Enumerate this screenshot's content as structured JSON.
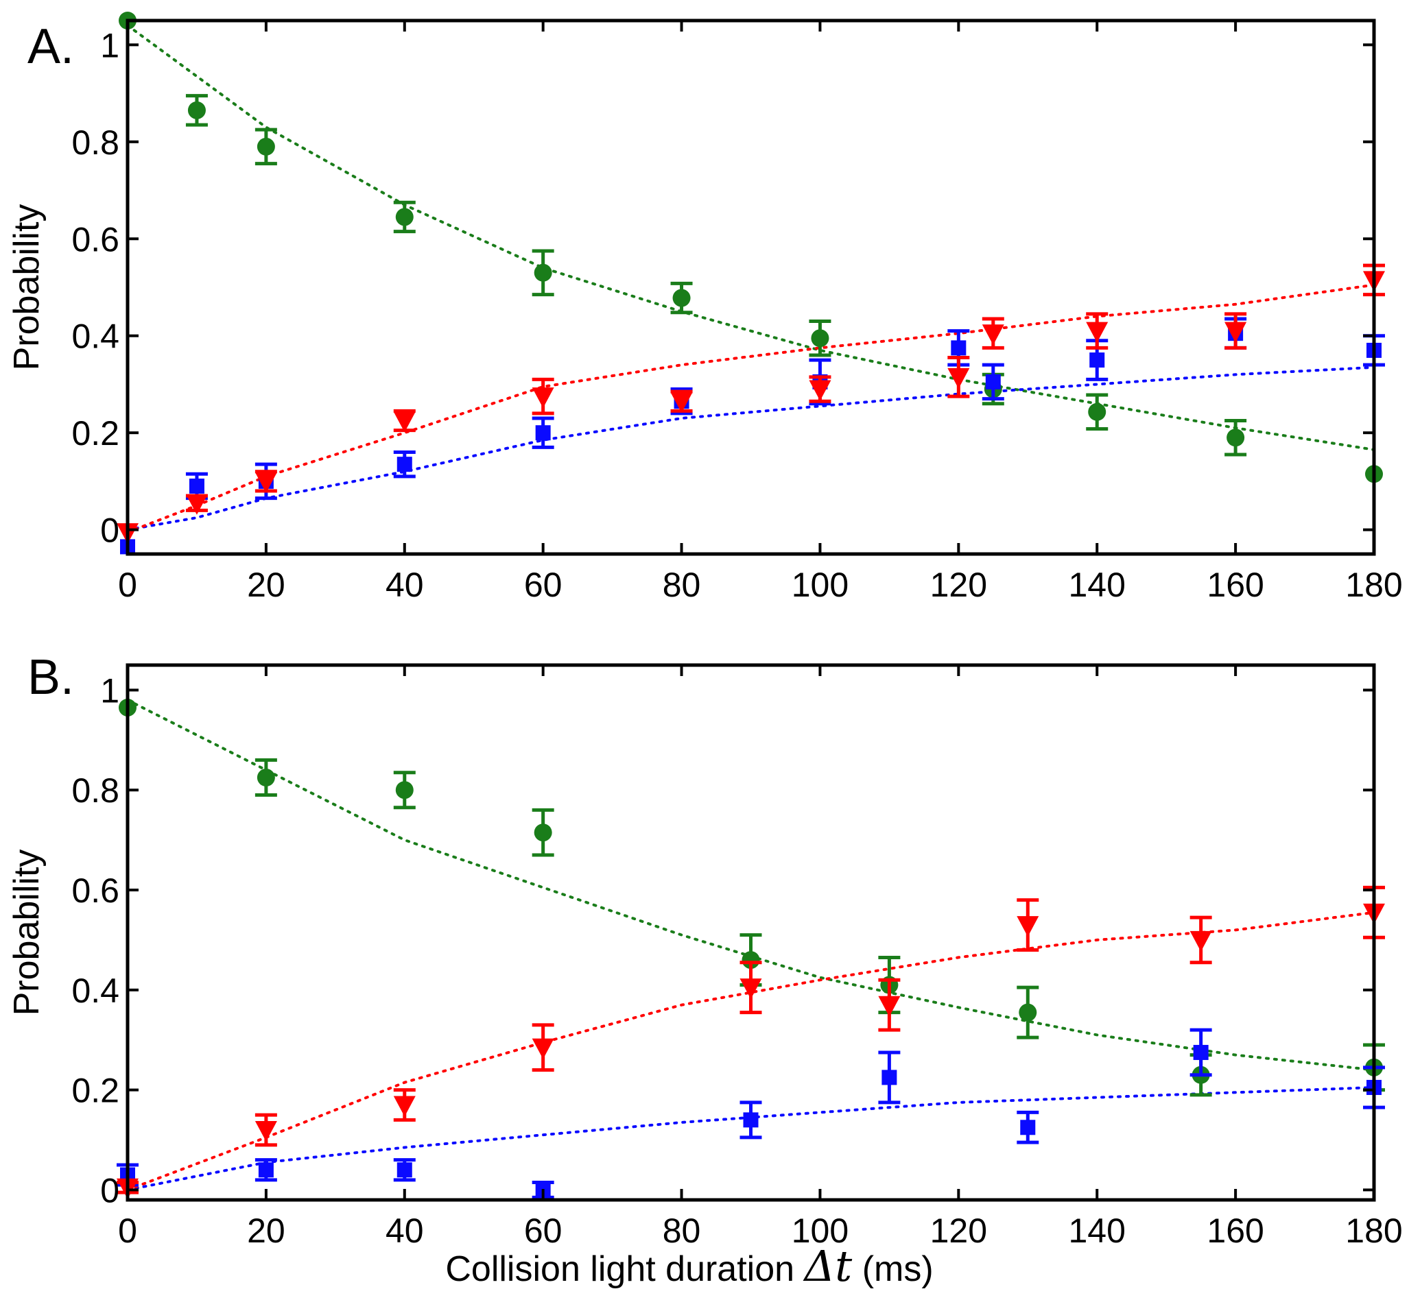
{
  "figure": {
    "x_title_prefix": "Collision light duration",
    "x_title_symbol": "Δt",
    "x_title_unit": "(ms)"
  },
  "chart_data": [
    {
      "type": "scatter",
      "panel_label": "A.",
      "ylabel": "Probability",
      "xlim": [
        0,
        180
      ],
      "ylim": [
        -0.05,
        1.05
      ],
      "xticks": [
        0,
        20,
        40,
        60,
        80,
        100,
        120,
        140,
        160,
        180
      ],
      "yticks": [
        0,
        0.2,
        0.4,
        0.6,
        0.8,
        1
      ],
      "ytick_labels": [
        "0",
        "0.2",
        "0.4",
        "0.6",
        "0.8",
        "1"
      ],
      "grid": false,
      "series": [
        {
          "marker": "circle",
          "color": "#1a7d1a",
          "points": [
            [
              0,
              1.05,
              0
            ],
            [
              10,
              0.865,
              0.03
            ],
            [
              20,
              0.79,
              0.035
            ],
            [
              40,
              0.645,
              0.03
            ],
            [
              60,
              0.53,
              0.045
            ],
            [
              80,
              0.478,
              0.03
            ],
            [
              100,
              0.395,
              0.035
            ],
            [
              125,
              0.29,
              0.03
            ],
            [
              140,
              0.243,
              0.035
            ],
            [
              160,
              0.19,
              0.035
            ],
            [
              180,
              0.115,
              0
            ]
          ],
          "fit": [
            [
              0,
              1.04
            ],
            [
              20,
              0.83
            ],
            [
              40,
              0.67
            ],
            [
              60,
              0.54
            ],
            [
              80,
              0.45
            ],
            [
              100,
              0.37
            ],
            [
              120,
              0.31
            ],
            [
              140,
              0.26
            ],
            [
              160,
              0.21
            ],
            [
              180,
              0.165
            ]
          ]
        },
        {
          "marker": "square",
          "color": "#0a0aff",
          "points": [
            [
              0,
              -0.035,
              0
            ],
            [
              10,
              0.09,
              0.025
            ],
            [
              20,
              0.1,
              0.035
            ],
            [
              40,
              0.135,
              0.025
            ],
            [
              60,
              0.2,
              0.03
            ],
            [
              80,
              0.265,
              0.025
            ],
            [
              100,
              0.305,
              0.045
            ],
            [
              120,
              0.375,
              0.035
            ],
            [
              125,
              0.305,
              0.035
            ],
            [
              140,
              0.35,
              0.04
            ],
            [
              160,
              0.405,
              0.03
            ],
            [
              180,
              0.37,
              0.03
            ]
          ],
          "fit": [
            [
              0,
              0.0
            ],
            [
              10,
              0.025
            ],
            [
              20,
              0.065
            ],
            [
              40,
              0.12
            ],
            [
              60,
              0.185
            ],
            [
              80,
              0.23
            ],
            [
              100,
              0.255
            ],
            [
              120,
              0.28
            ],
            [
              140,
              0.3
            ],
            [
              160,
              0.32
            ],
            [
              180,
              0.335
            ]
          ]
        },
        {
          "marker": "triangle-down",
          "color": "#ff0000",
          "points": [
            [
              0,
              -0.005,
              0
            ],
            [
              10,
              0.055,
              0.015
            ],
            [
              20,
              0.1,
              0.02
            ],
            [
              40,
              0.225,
              0.02
            ],
            [
              60,
              0.275,
              0.035
            ],
            [
              80,
              0.265,
              0.02
            ],
            [
              100,
              0.29,
              0.025
            ],
            [
              120,
              0.315,
              0.04
            ],
            [
              125,
              0.405,
              0.03
            ],
            [
              140,
              0.41,
              0.035
            ],
            [
              160,
              0.41,
              0.035
            ],
            [
              180,
              0.515,
              0.03
            ]
          ],
          "fit": [
            [
              0,
              -0.005
            ],
            [
              10,
              0.05
            ],
            [
              20,
              0.11
            ],
            [
              40,
              0.2
            ],
            [
              60,
              0.295
            ],
            [
              80,
              0.34
            ],
            [
              100,
              0.375
            ],
            [
              120,
              0.405
            ],
            [
              140,
              0.44
            ],
            [
              160,
              0.465
            ],
            [
              180,
              0.505
            ]
          ]
        }
      ]
    },
    {
      "type": "scatter",
      "panel_label": "B.",
      "ylabel": "Probability",
      "xlim": [
        0,
        180
      ],
      "ylim": [
        -0.02,
        1.05
      ],
      "xticks": [
        0,
        20,
        40,
        60,
        80,
        100,
        120,
        140,
        160,
        180
      ],
      "yticks": [
        0,
        0.2,
        0.4,
        0.6,
        0.8,
        1
      ],
      "ytick_labels": [
        "0",
        "0.2",
        "0.4",
        "0.6",
        "0.8",
        "1"
      ],
      "grid": false,
      "series": [
        {
          "marker": "circle",
          "color": "#1a7d1a",
          "points": [
            [
              0,
              0.965,
              0
            ],
            [
              20,
              0.825,
              0.035
            ],
            [
              40,
              0.8,
              0.035
            ],
            [
              60,
              0.715,
              0.045
            ],
            [
              90,
              0.46,
              0.05
            ],
            [
              110,
              0.41,
              0.055
            ],
            [
              130,
              0.355,
              0.05
            ],
            [
              155,
              0.23,
              0.04
            ],
            [
              180,
              0.245,
              0.045
            ]
          ],
          "fit": [
            [
              0,
              0.98
            ],
            [
              20,
              0.84
            ],
            [
              40,
              0.7
            ],
            [
              60,
              0.605
            ],
            [
              80,
              0.51
            ],
            [
              100,
              0.425
            ],
            [
              120,
              0.365
            ],
            [
              140,
              0.31
            ],
            [
              160,
              0.27
            ],
            [
              180,
              0.24
            ]
          ]
        },
        {
          "marker": "square",
          "color": "#0a0aff",
          "points": [
            [
              0,
              0.03,
              0.02
            ],
            [
              20,
              0.04,
              0.02
            ],
            [
              40,
              0.04,
              0.02
            ],
            [
              60,
              0.0,
              0.015
            ],
            [
              90,
              0.14,
              0.035
            ],
            [
              110,
              0.225,
              0.05
            ],
            [
              130,
              0.125,
              0.03
            ],
            [
              155,
              0.275,
              0.045
            ],
            [
              180,
              0.205,
              0.04
            ]
          ],
          "fit": [
            [
              0,
              0.0
            ],
            [
              20,
              0.055
            ],
            [
              40,
              0.085
            ],
            [
              60,
              0.11
            ],
            [
              80,
              0.135
            ],
            [
              100,
              0.155
            ],
            [
              120,
              0.175
            ],
            [
              140,
              0.185
            ],
            [
              160,
              0.195
            ],
            [
              180,
              0.205
            ]
          ]
        },
        {
          "marker": "triangle-down",
          "color": "#ff0000",
          "points": [
            [
              0,
              0.005,
              0.01
            ],
            [
              20,
              0.12,
              0.03
            ],
            [
              40,
              0.17,
              0.03
            ],
            [
              60,
              0.285,
              0.045
            ],
            [
              90,
              0.405,
              0.05
            ],
            [
              110,
              0.37,
              0.05
            ],
            [
              130,
              0.53,
              0.05
            ],
            [
              155,
              0.5,
              0.045
            ],
            [
              180,
              0.555,
              0.05
            ]
          ],
          "fit": [
            [
              0,
              0.0
            ],
            [
              20,
              0.105
            ],
            [
              40,
              0.215
            ],
            [
              60,
              0.295
            ],
            [
              80,
              0.37
            ],
            [
              100,
              0.42
            ],
            [
              120,
              0.465
            ],
            [
              140,
              0.5
            ],
            [
              160,
              0.52
            ],
            [
              180,
              0.555
            ]
          ]
        }
      ]
    }
  ]
}
